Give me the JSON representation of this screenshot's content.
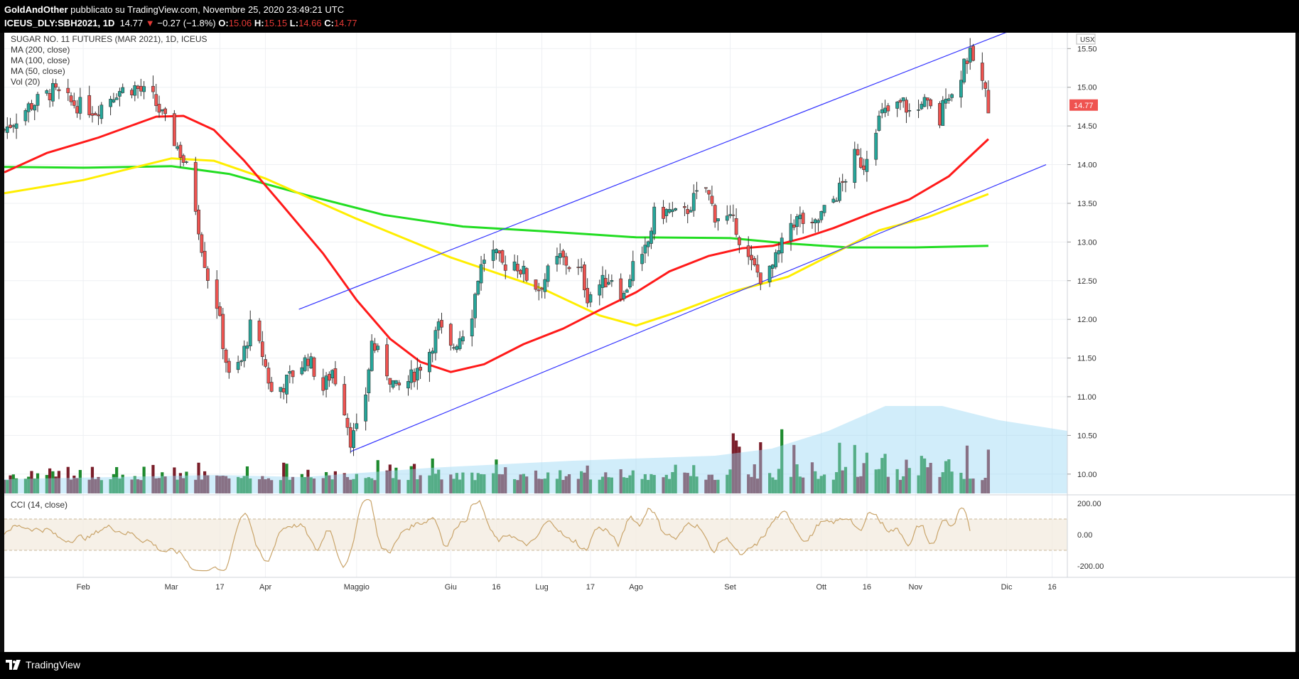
{
  "header": {
    "author": "GoldAndOther",
    "published_text": "pubblicato su TradingView.com, Novembre 25, 2020 23:49:21 UTC",
    "symbol": "ICEUS_DLY:SBH2021, 1D",
    "last": "14.77",
    "change": "−0.27 (−1.8%)",
    "o_label": "O:",
    "o": "15.06",
    "h_label": "H:",
    "h": "15.15",
    "l_label": "L:",
    "l": "14.66",
    "c_label": "C:",
    "c": "14.77"
  },
  "legend": {
    "title": "SUGAR NO. 11 FUTURES (MAR 2021), 1D, ICEUS",
    "ma200": "MA (200, close)",
    "ma100": "MA (100, close)",
    "ma50": "MA (50, close)",
    "vol": "Vol (20)",
    "cci": "CCI (14, close)"
  },
  "footer": {
    "brand": "TradingView"
  },
  "colors": {
    "up": "#26a69a",
    "down": "#ef5350",
    "vol_up": "#1e8a2e",
    "vol_down": "#7a1e2a",
    "ma50": "#ff1a1a",
    "ma100": "#ffee00",
    "ma200": "#22dd22",
    "channel": "#3333ff",
    "cci": "#c9a46a",
    "price_tag": "#ef5350"
  },
  "chart_data": {
    "type": "candlestick",
    "currency_label": "USX",
    "last_price_tag": "14.77",
    "y_ticks": [
      "15.50",
      "15.00",
      "14.50",
      "14.00",
      "13.50",
      "13.00",
      "12.50",
      "12.00",
      "11.50",
      "11.00",
      "10.50",
      "10.00"
    ],
    "ylim": [
      9.75,
      15.65
    ],
    "x_labels": [
      "Feb",
      "Mar",
      "17",
      "Apr",
      "Maggio",
      "Giu",
      "16",
      "Lug",
      "17",
      "Ago",
      "Set",
      "Ott",
      "16",
      "Nov",
      "Dic",
      "16"
    ],
    "x_range": [
      "2020-01-06",
      "2020-12-21"
    ],
    "x_label_dates": [
      "2020-02-01",
      "2020-03-01",
      "2020-03-17",
      "2020-04-01",
      "2020-05-01",
      "2020-06-01",
      "2020-06-16",
      "2020-07-01",
      "2020-07-17",
      "2020-08-01",
      "2020-09-01",
      "2020-10-01",
      "2020-10-16",
      "2020-11-01",
      "2020-12-01",
      "2020-12-16"
    ],
    "price_points": [
      [
        "2020-01-06",
        14.45
      ],
      [
        "2020-01-14",
        14.75
      ],
      [
        "2020-01-22",
        14.95
      ],
      [
        "2020-01-28",
        14.8
      ],
      [
        "2020-02-05",
        14.7
      ],
      [
        "2020-02-12",
        14.95
      ],
      [
        "2020-02-18",
        15.0
      ],
      [
        "2020-02-24",
        14.85
      ],
      [
        "2020-02-28",
        14.55
      ],
      [
        "2020-03-04",
        14.15
      ],
      [
        "2020-03-06",
        13.95
      ],
      [
        "2020-03-09",
        13.45
      ],
      [
        "2020-03-11",
        12.95
      ],
      [
        "2020-03-13",
        12.55
      ],
      [
        "2020-03-16",
        12.2
      ],
      [
        "2020-03-18",
        11.7
      ],
      [
        "2020-03-20",
        11.25
      ],
      [
        "2020-03-24",
        11.45
      ],
      [
        "2020-03-27",
        11.9
      ],
      [
        "2020-03-31",
        11.55
      ],
      [
        "2020-04-03",
        11.05
      ],
      [
        "2020-04-07",
        11.15
      ],
      [
        "2020-04-10",
        11.3
      ],
      [
        "2020-04-15",
        11.5
      ],
      [
        "2020-04-20",
        11.1
      ],
      [
        "2020-04-23",
        11.35
      ],
      [
        "2020-04-27",
        10.85
      ],
      [
        "2020-04-29",
        10.45
      ],
      [
        "2020-05-01",
        10.55
      ],
      [
        "2020-05-04",
        11.05
      ],
      [
        "2020-05-06",
        11.7
      ],
      [
        "2020-05-10",
        11.4
      ],
      [
        "2020-05-14",
        11.1
      ],
      [
        "2020-05-18",
        11.2
      ],
      [
        "2020-05-21",
        11.35
      ],
      [
        "2020-05-25",
        11.6
      ],
      [
        "2020-05-28",
        11.9
      ],
      [
        "2020-06-01",
        11.6
      ],
      [
        "2020-06-05",
        11.85
      ],
      [
        "2020-06-08",
        12.1
      ],
      [
        "2020-06-10",
        12.55
      ],
      [
        "2020-06-12",
        12.8
      ],
      [
        "2020-06-15",
        12.85
      ],
      [
        "2020-06-18",
        12.7
      ],
      [
        "2020-06-22",
        12.75
      ],
      [
        "2020-06-26",
        12.55
      ],
      [
        "2020-06-30",
        12.4
      ],
      [
        "2020-07-03",
        12.6
      ],
      [
        "2020-07-07",
        12.8
      ],
      [
        "2020-07-10",
        12.7
      ],
      [
        "2020-07-14",
        12.6
      ],
      [
        "2020-07-16",
        12.3
      ],
      [
        "2020-07-20",
        12.45
      ],
      [
        "2020-07-24",
        12.55
      ],
      [
        "2020-07-28",
        12.3
      ],
      [
        "2020-07-31",
        12.7
      ],
      [
        "2020-08-03",
        12.75
      ],
      [
        "2020-08-05",
        13.0
      ],
      [
        "2020-08-07",
        13.35
      ],
      [
        "2020-08-12",
        13.4
      ],
      [
        "2020-08-16",
        13.3
      ],
      [
        "2020-08-20",
        13.55
      ],
      [
        "2020-08-24",
        13.7
      ],
      [
        "2020-08-27",
        13.35
      ],
      [
        "2020-08-31",
        13.3
      ],
      [
        "2020-09-03",
        13.2
      ],
      [
        "2020-09-05",
        12.9
      ],
      [
        "2020-09-08",
        12.7
      ],
      [
        "2020-09-11",
        12.55
      ],
      [
        "2020-09-14",
        12.6
      ],
      [
        "2020-09-17",
        12.85
      ],
      [
        "2020-09-21",
        13.25
      ],
      [
        "2020-09-24",
        13.3
      ],
      [
        "2020-09-28",
        13.15
      ],
      [
        "2020-10-01",
        13.35
      ],
      [
        "2020-10-05",
        13.55
      ],
      [
        "2020-10-08",
        13.75
      ],
      [
        "2020-10-12",
        14.1
      ],
      [
        "2020-10-15",
        14.0
      ],
      [
        "2020-10-18",
        14.45
      ],
      [
        "2020-10-21",
        14.65
      ],
      [
        "2020-10-24",
        14.7
      ],
      [
        "2020-10-28",
        14.8
      ],
      [
        "2020-11-01",
        14.55
      ],
      [
        "2020-11-03",
        14.85
      ],
      [
        "2020-11-06",
        14.7
      ],
      [
        "2020-11-09",
        14.55
      ],
      [
        "2020-11-11",
        14.95
      ],
      [
        "2020-11-14",
        14.85
      ],
      [
        "2020-11-17",
        15.35
      ],
      [
        "2020-11-19",
        15.4
      ],
      [
        "2020-11-21",
        15.3
      ],
      [
        "2020-11-23",
        15.05
      ],
      [
        "2020-11-25",
        14.77
      ]
    ],
    "ma50_points": [
      [
        "2020-01-06",
        13.9
      ],
      [
        "2020-01-20",
        14.15
      ],
      [
        "2020-02-06",
        14.35
      ],
      [
        "2020-02-25",
        14.62
      ],
      [
        "2020-03-05",
        14.63
      ],
      [
        "2020-03-15",
        14.45
      ],
      [
        "2020-03-25",
        14.05
      ],
      [
        "2020-04-06",
        13.5
      ],
      [
        "2020-04-20",
        12.85
      ],
      [
        "2020-05-01",
        12.25
      ],
      [
        "2020-05-12",
        11.75
      ],
      [
        "2020-05-22",
        11.45
      ],
      [
        "2020-06-01",
        11.32
      ],
      [
        "2020-06-12",
        11.42
      ],
      [
        "2020-06-25",
        11.68
      ],
      [
        "2020-07-08",
        11.88
      ],
      [
        "2020-07-20",
        12.12
      ],
      [
        "2020-08-01",
        12.35
      ],
      [
        "2020-08-12",
        12.62
      ],
      [
        "2020-08-25",
        12.82
      ],
      [
        "2020-09-05",
        12.92
      ],
      [
        "2020-09-15",
        12.95
      ],
      [
        "2020-09-25",
        13.05
      ],
      [
        "2020-10-05",
        13.18
      ],
      [
        "2020-10-18",
        13.38
      ],
      [
        "2020-10-30",
        13.55
      ],
      [
        "2020-11-12",
        13.85
      ],
      [
        "2020-11-25",
        14.33
      ]
    ],
    "ma100_points": [
      [
        "2020-01-06",
        13.63
      ],
      [
        "2020-02-01",
        13.8
      ],
      [
        "2020-03-01",
        14.08
      ],
      [
        "2020-03-15",
        14.05
      ],
      [
        "2020-04-01",
        13.82
      ],
      [
        "2020-05-01",
        13.3
      ],
      [
        "2020-06-01",
        12.8
      ],
      [
        "2020-07-01",
        12.4
      ],
      [
        "2020-07-20",
        12.05
      ],
      [
        "2020-08-01",
        11.92
      ],
      [
        "2020-08-15",
        12.1
      ],
      [
        "2020-09-01",
        12.35
      ],
      [
        "2020-09-20",
        12.55
      ],
      [
        "2020-10-05",
        12.85
      ],
      [
        "2020-10-20",
        13.15
      ],
      [
        "2020-11-05",
        13.32
      ],
      [
        "2020-11-25",
        13.62
      ]
    ],
    "ma200_points": [
      [
        "2020-01-06",
        13.97
      ],
      [
        "2020-02-01",
        13.96
      ],
      [
        "2020-03-01",
        13.98
      ],
      [
        "2020-03-20",
        13.88
      ],
      [
        "2020-04-15",
        13.6
      ],
      [
        "2020-05-10",
        13.35
      ],
      [
        "2020-06-05",
        13.2
      ],
      [
        "2020-07-01",
        13.14
      ],
      [
        "2020-08-01",
        13.06
      ],
      [
        "2020-09-01",
        13.05
      ],
      [
        "2020-09-20",
        12.98
      ],
      [
        "2020-10-10",
        12.93
      ],
      [
        "2020-11-01",
        12.93
      ],
      [
        "2020-11-25",
        12.95
      ]
    ],
    "channel_upper": [
      [
        "2020-04-12",
        12.13
      ],
      [
        "2020-12-10",
        15.85
      ]
    ],
    "channel_lower": [
      [
        "2020-04-29",
        10.29
      ],
      [
        "2020-12-14",
        14.0
      ]
    ],
    "volume_note": "Vol (20) histogram, 0 to 1.45 (relative)",
    "cci_ticks": [
      "200.00",
      "0.00",
      "-200.00"
    ],
    "cci_range": [
      -250,
      250
    ]
  }
}
